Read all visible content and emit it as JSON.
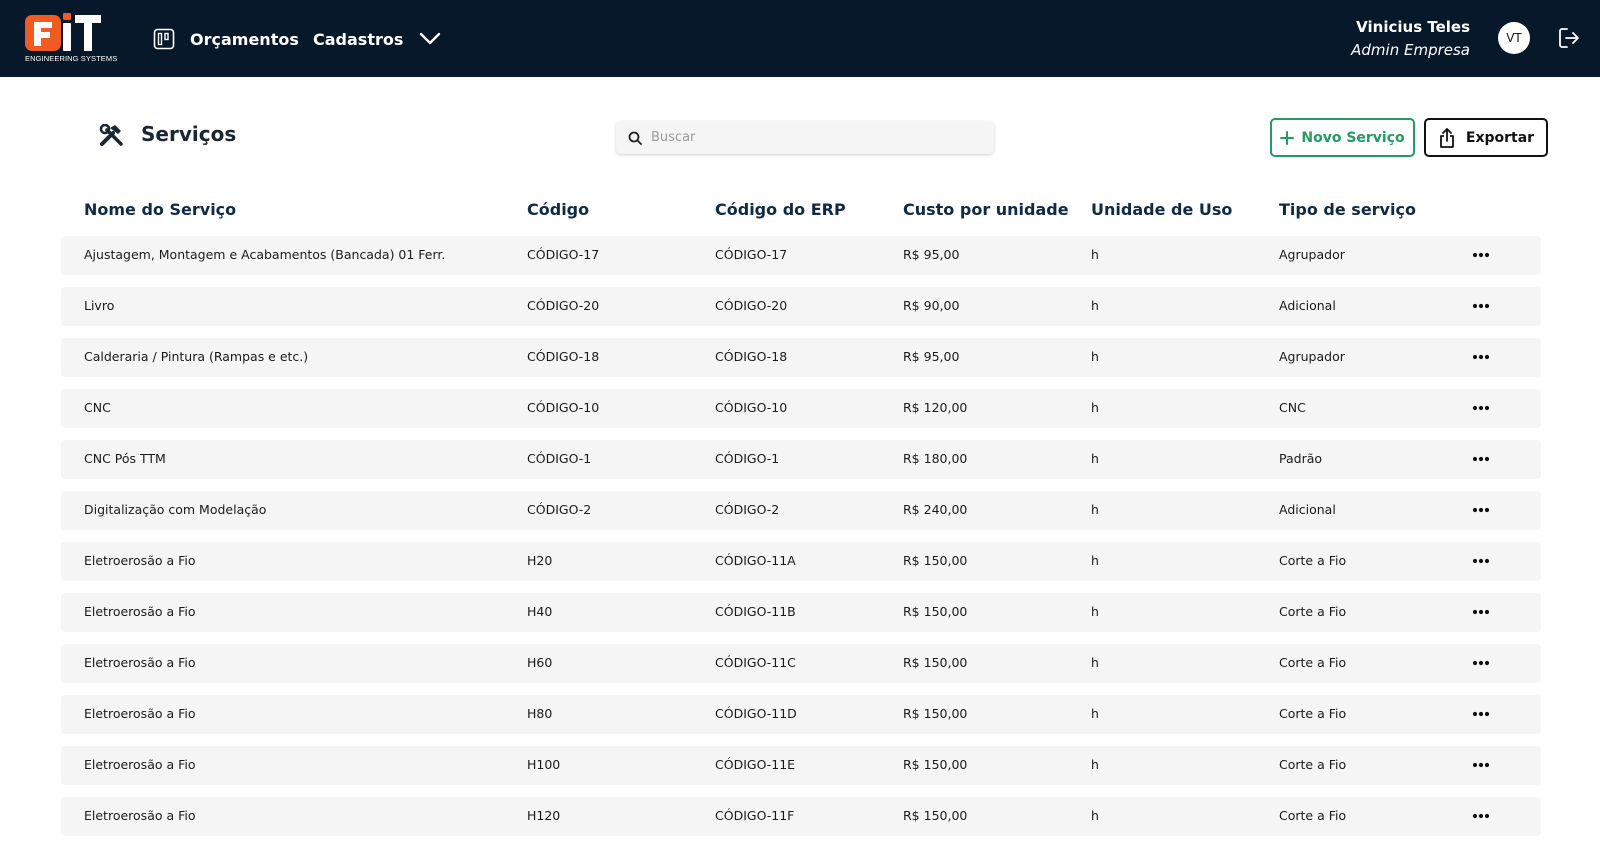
{
  "navbar": {
    "logo_subtitle": "ENGINEERING SYSTEMS",
    "logo_colors": {
      "primary": "#f15a22",
      "secondary": "#ffffff"
    },
    "nav_items": [
      {
        "label": "Orçamentos",
        "icon": "kanban-board-icon"
      },
      {
        "label": "Cadastros",
        "icon": "chevron-down-icon"
      }
    ],
    "user": {
      "name": "Vinicius Teles",
      "role": "Admin Empresa",
      "initials": "VT"
    },
    "logout_icon": "logout-icon"
  },
  "page": {
    "title": "Serviços",
    "title_icon": "tools-icon",
    "search_placeholder": "Buscar",
    "search_value": "",
    "new_button_label": "Novo Serviço",
    "export_button_label": "Exportar",
    "accent_color": "#1f9d62"
  },
  "table": {
    "columns": [
      "Nome do Serviço",
      "Código",
      "Código do ERP",
      "Custo por unidade",
      "Unidade de Uso",
      "Tipo de serviço"
    ],
    "rows": [
      {
        "name": "Ajustagem, Montagem e Acabamentos (Bancada) 01 Ferr.",
        "code": "CÓDIGO-17",
        "erp": "CÓDIGO-17",
        "cost": "R$ 95,00",
        "unit": "h",
        "type": "Agrupador"
      },
      {
        "name": "Livro",
        "code": "CÓDIGO-20",
        "erp": "CÓDIGO-20",
        "cost": "R$ 90,00",
        "unit": "h",
        "type": "Adicional"
      },
      {
        "name": "Calderaria / Pintura (Rampas e etc.)",
        "code": "CÓDIGO-18",
        "erp": "CÓDIGO-18",
        "cost": "R$ 95,00",
        "unit": "h",
        "type": "Agrupador"
      },
      {
        "name": "CNC",
        "code": "CÓDIGO-10",
        "erp": "CÓDIGO-10",
        "cost": "R$ 120,00",
        "unit": "h",
        "type": "CNC"
      },
      {
        "name": "CNC Pós TTM",
        "code": "CÓDIGO-1",
        "erp": "CÓDIGO-1",
        "cost": "R$ 180,00",
        "unit": "h",
        "type": "Padrão"
      },
      {
        "name": "Digitalização com Modelação",
        "code": "CÓDIGO-2",
        "erp": "CÓDIGO-2",
        "cost": "R$ 240,00",
        "unit": "h",
        "type": "Adicional"
      },
      {
        "name": "Eletroerosão a Fio",
        "code": "H20",
        "erp": "CÓDIGO-11A",
        "cost": "R$ 150,00",
        "unit": "h",
        "type": "Corte a Fio"
      },
      {
        "name": "Eletroerosão a Fio",
        "code": "H40",
        "erp": "CÓDIGO-11B",
        "cost": "R$ 150,00",
        "unit": "h",
        "type": "Corte a Fio"
      },
      {
        "name": "Eletroerosão a Fio",
        "code": "H60",
        "erp": "CÓDIGO-11C",
        "cost": "R$ 150,00",
        "unit": "h",
        "type": "Corte a Fio"
      },
      {
        "name": "Eletroerosão a Fio",
        "code": "H80",
        "erp": "CÓDIGO-11D",
        "cost": "R$ 150,00",
        "unit": "h",
        "type": "Corte a Fio"
      },
      {
        "name": "Eletroerosão a Fio",
        "code": "H100",
        "erp": "CÓDIGO-11E",
        "cost": "R$ 150,00",
        "unit": "h",
        "type": "Corte a Fio"
      },
      {
        "name": "Eletroerosão a Fio",
        "code": "H120",
        "erp": "CÓDIGO-11F",
        "cost": "R$ 150,00",
        "unit": "h",
        "type": "Corte a Fio"
      }
    ],
    "row_action_icon": "more-horizontal-icon"
  }
}
